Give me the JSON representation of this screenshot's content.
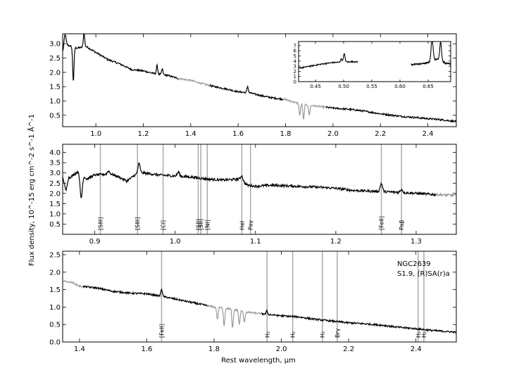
{
  "chart_data": {
    "type": "line",
    "ylabel": "Flux density, 10^-15 erg cm^-2 s^-1 Å^-1",
    "xlabel": "Rest wavelength, μm",
    "object": "NGC2639",
    "classification": "S1.9,  (R)SA(r)a",
    "colors": {
      "spectrum": "#000000",
      "telluric": "#999999",
      "marker": "#aaaaaa"
    },
    "panels": [
      {
        "id": "top",
        "xlim": [
          0.86,
          2.52
        ],
        "ylim": [
          0.1,
          3.35
        ],
        "xticks": [
          "1.0",
          "1.2",
          "1.4",
          "1.6",
          "1.8",
          "2.0",
          "2.2",
          "2.4"
        ],
        "yticks": [
          "0.5",
          "1.0",
          "1.5",
          "2.0",
          "2.5",
          "3.0"
        ],
        "anchors": [
          [
            0.86,
            2.7
          ],
          [
            0.88,
            2.95
          ],
          [
            0.92,
            2.85
          ],
          [
            0.96,
            2.9
          ],
          [
            1.0,
            2.7
          ],
          [
            1.05,
            2.45
          ],
          [
            1.1,
            2.3
          ],
          [
            1.15,
            2.1
          ],
          [
            1.2,
            2.05
          ],
          [
            1.25,
            1.95
          ],
          [
            1.3,
            1.9
          ],
          [
            1.35,
            1.78
          ],
          [
            1.4,
            1.72
          ],
          [
            1.45,
            1.6
          ],
          [
            1.5,
            1.5
          ],
          [
            1.55,
            1.42
          ],
          [
            1.6,
            1.32
          ],
          [
            1.65,
            1.28
          ],
          [
            1.7,
            1.18
          ],
          [
            1.75,
            1.1
          ],
          [
            1.8,
            1.05
          ],
          [
            1.85,
            0.92
          ],
          [
            1.9,
            0.85
          ],
          [
            1.95,
            0.8
          ],
          [
            2.0,
            0.75
          ],
          [
            2.05,
            0.72
          ],
          [
            2.1,
            0.68
          ],
          [
            2.15,
            0.62
          ],
          [
            2.2,
            0.55
          ],
          [
            2.25,
            0.5
          ],
          [
            2.3,
            0.45
          ],
          [
            2.35,
            0.42
          ],
          [
            2.4,
            0.38
          ],
          [
            2.45,
            0.35
          ],
          [
            2.5,
            0.3
          ],
          [
            2.52,
            0.28
          ]
        ],
        "gray_ranges": [
          [
            1.35,
            1.48
          ],
          [
            1.79,
            1.97
          ]
        ],
        "spikes": [
          [
            0.905,
            -1.2,
            0.004
          ],
          [
            0.87,
            0.5,
            0.006
          ],
          [
            0.95,
            0.5,
            0.004
          ],
          [
            1.258,
            0.3,
            0.004
          ],
          [
            1.28,
            0.2,
            0.004
          ],
          [
            1.64,
            0.22,
            0.004
          ],
          [
            1.876,
            -0.55,
            0.004
          ],
          [
            1.86,
            -0.4,
            0.004
          ],
          [
            1.9,
            -0.35,
            0.004
          ]
        ],
        "noise": 0.03,
        "inset": {
          "xlim": [
            0.42,
            0.69
          ],
          "ylim": [
            0,
            7.8
          ],
          "xticks": [
            "0.45",
            "0.50",
            "0.55",
            "0.60",
            "0.65"
          ],
          "yticks": [
            "0",
            "1",
            "2",
            "3",
            "4",
            "5",
            "6",
            "7"
          ],
          "segments": [
            [
              [
                0.42,
                2.6
              ],
              [
                0.44,
                3.0
              ],
              [
                0.46,
                3.4
              ],
              [
                0.48,
                3.7
              ],
              [
                0.5,
                3.8
              ],
              [
                0.52,
                3.9
              ],
              [
                0.525,
                3.8
              ]
            ],
            [
              [
                0.62,
                3.3
              ],
              [
                0.64,
                3.5
              ],
              [
                0.65,
                3.7
              ],
              [
                0.66,
                4.2
              ],
              [
                0.67,
                4.5
              ],
              [
                0.68,
                3.6
              ],
              [
                0.69,
                3.5
              ]
            ]
          ],
          "spikes": [
            [
              0.501,
              1.6,
              0.002
            ],
            [
              0.4959,
              0.6,
              0.002
            ],
            [
              0.6563,
              3.3,
              0.002
            ],
            [
              0.6584,
              2.0,
              0.002
            ],
            [
              0.6725,
              2.2,
              0.002
            ],
            [
              0.6717,
              1.4,
              0.002
            ]
          ]
        }
      },
      {
        "id": "middle",
        "xlim": [
          0.86,
          1.35
        ],
        "ylim": [
          0.0,
          4.4
        ],
        "xticks": [
          "0.9",
          "1.0",
          "1.1",
          "1.2",
          "1.3"
        ],
        "yticks": [
          "0.5",
          "1.0",
          "1.5",
          "2.0",
          "2.5",
          "3.0",
          "3.5",
          "4.0"
        ],
        "anchors": [
          [
            0.86,
            2.7
          ],
          [
            0.87,
            2.8
          ],
          [
            0.88,
            3.1
          ],
          [
            0.89,
            2.7
          ],
          [
            0.9,
            2.9
          ],
          [
            0.92,
            2.95
          ],
          [
            0.93,
            2.8
          ],
          [
            0.94,
            2.6
          ],
          [
            0.95,
            2.9
          ],
          [
            0.96,
            3.0
          ],
          [
            0.98,
            2.9
          ],
          [
            1.0,
            2.85
          ],
          [
            1.02,
            2.8
          ],
          [
            1.04,
            2.7
          ],
          [
            1.06,
            2.65
          ],
          [
            1.08,
            2.7
          ],
          [
            1.09,
            2.4
          ],
          [
            1.1,
            2.35
          ],
          [
            1.12,
            2.4
          ],
          [
            1.15,
            2.35
          ],
          [
            1.18,
            2.3
          ],
          [
            1.2,
            2.25
          ],
          [
            1.22,
            2.15
          ],
          [
            1.25,
            2.1
          ],
          [
            1.28,
            2.05
          ],
          [
            1.3,
            2.0
          ],
          [
            1.32,
            1.95
          ],
          [
            1.35,
            1.9
          ]
        ],
        "gray_ranges": [
          [
            1.325,
            1.35
          ]
        ],
        "spikes": [
          [
            0.883,
            -1.2,
            0.002
          ],
          [
            0.864,
            -0.6,
            0.002
          ],
          [
            0.955,
            0.5,
            0.002
          ],
          [
            1.004,
            0.2,
            0.002
          ],
          [
            1.083,
            0.25,
            0.002
          ],
          [
            1.2567,
            0.4,
            0.002
          ],
          [
            1.2818,
            0.15,
            0.002
          ],
          [
            0.917,
            0.15,
            0.002
          ]
        ],
        "noise": 0.06,
        "markers": [
          {
            "x": 0.9069,
            "label": "[SIII]"
          },
          {
            "x": 0.9531,
            "label": "[SIII]"
          },
          {
            "x": 0.985,
            "label": "[CI]"
          },
          {
            "x": 1.0287,
            "label": "[SII]"
          },
          {
            "x": 1.032,
            "label": "[SII]"
          },
          {
            "x": 1.04,
            "label": "[NI]"
          },
          {
            "x": 1.083,
            "label": "HeI"
          },
          {
            "x": 1.0938,
            "label": "Paγ"
          },
          {
            "x": 1.2567,
            "label": "[FeII]"
          },
          {
            "x": 1.2818,
            "label": "Paβ"
          }
        ]
      },
      {
        "id": "bottom",
        "xlim": [
          1.35,
          2.52
        ],
        "ylim": [
          0.0,
          2.6
        ],
        "xticks": [
          "1.4",
          "1.6",
          "1.8",
          "2.0",
          "2.2",
          "2.4"
        ],
        "yticks": [
          "0.0",
          "0.5",
          "1.0",
          "1.5",
          "2.0",
          "2.5"
        ],
        "anchors": [
          [
            1.35,
            1.75
          ],
          [
            1.38,
            1.7
          ],
          [
            1.4,
            1.6
          ],
          [
            1.45,
            1.55
          ],
          [
            1.5,
            1.45
          ],
          [
            1.55,
            1.4
          ],
          [
            1.6,
            1.38
          ],
          [
            1.65,
            1.3
          ],
          [
            1.7,
            1.2
          ],
          [
            1.75,
            1.1
          ],
          [
            1.8,
            1.0
          ],
          [
            1.85,
            0.95
          ],
          [
            1.9,
            0.85
          ],
          [
            1.95,
            0.8
          ],
          [
            2.0,
            0.75
          ],
          [
            2.05,
            0.72
          ],
          [
            2.1,
            0.65
          ],
          [
            2.15,
            0.6
          ],
          [
            2.2,
            0.55
          ],
          [
            2.25,
            0.52
          ],
          [
            2.3,
            0.48
          ],
          [
            2.35,
            0.42
          ],
          [
            2.4,
            0.38
          ],
          [
            2.45,
            0.33
          ],
          [
            2.52,
            0.28
          ]
        ],
        "gray_ranges": [
          [
            1.35,
            1.41
          ],
          [
            1.78,
            1.94
          ]
        ],
        "spikes": [
          [
            1.644,
            0.22,
            0.003
          ],
          [
            1.81,
            -0.35,
            0.003
          ],
          [
            1.83,
            -0.5,
            0.003
          ],
          [
            1.855,
            -0.55,
            0.003
          ],
          [
            1.875,
            -0.4,
            0.003
          ],
          [
            1.89,
            -0.3,
            0.003
          ],
          [
            1.957,
            0.1,
            0.003
          ]
        ],
        "noise": 0.025,
        "markers": [
          {
            "x": 1.644,
            "label": "[FeII]"
          },
          {
            "x": 1.9576,
            "label": "H₂"
          },
          {
            "x": 2.0338,
            "label": "H₂"
          },
          {
            "x": 2.1218,
            "label": "H₂"
          },
          {
            "x": 2.1661,
            "label": "Brγ"
          },
          {
            "x": 2.4066,
            "label": "H₂"
          },
          {
            "x": 2.4237,
            "label": "H₂"
          }
        ]
      }
    ]
  }
}
